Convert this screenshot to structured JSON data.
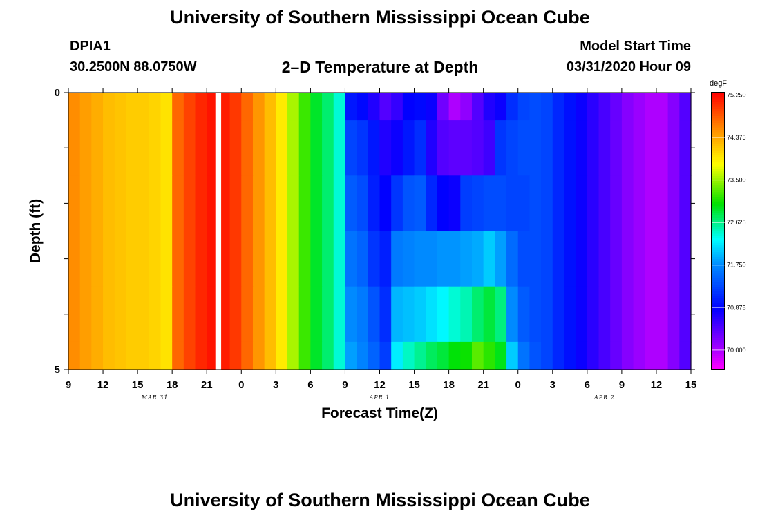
{
  "header": {
    "title": "University of Southern Mississippi Ocean Cube",
    "station": "DPIA1",
    "coords": "30.2500N 88.0750W",
    "subtitle": "2–D Temperature at Depth",
    "model_start_label": "Model Start Time",
    "model_start_value": "03/31/2020 Hour 09"
  },
  "footer": {
    "title": "University of Southern Mississippi Ocean Cube"
  },
  "chart_data": {
    "type": "heatmap",
    "title": "2–D Temperature at Depth",
    "xlabel": "Forecast Time(Z)",
    "ylabel": "Depth (ft)",
    "x_unit": "hours since model start (03/31/2020 09Z)",
    "x_range": [
      0,
      54
    ],
    "x_ticks": [
      {
        "h": 0,
        "label": "9"
      },
      {
        "h": 3,
        "label": "12"
      },
      {
        "h": 6,
        "label": "15"
      },
      {
        "h": 9,
        "label": "18"
      },
      {
        "h": 12,
        "label": "21"
      },
      {
        "h": 15,
        "label": "0"
      },
      {
        "h": 18,
        "label": "3"
      },
      {
        "h": 21,
        "label": "6"
      },
      {
        "h": 24,
        "label": "9"
      },
      {
        "h": 27,
        "label": "12"
      },
      {
        "h": 30,
        "label": "15"
      },
      {
        "h": 33,
        "label": "18"
      },
      {
        "h": 36,
        "label": "21"
      },
      {
        "h": 39,
        "label": "0"
      },
      {
        "h": 42,
        "label": "3"
      },
      {
        "h": 45,
        "label": "6"
      },
      {
        "h": 48,
        "label": "9"
      },
      {
        "h": 51,
        "label": "12"
      },
      {
        "h": 54,
        "label": "15"
      }
    ],
    "date_labels": [
      {
        "h": 7.5,
        "label": "MAR 31"
      },
      {
        "h": 27,
        "label": "APR 1"
      },
      {
        "h": 46.5,
        "label": "APR 2"
      }
    ],
    "y_range": [
      0,
      5
    ],
    "y_ticks": [
      {
        "v": 0,
        "label": "0"
      },
      {
        "v": 5,
        "label": "5"
      }
    ],
    "y_minor_ticks": [
      1,
      2,
      3,
      4
    ],
    "depth_bands": [
      {
        "top": 0,
        "bottom": 0.5
      },
      {
        "top": 0.5,
        "bottom": 1.5
      },
      {
        "top": 1.5,
        "bottom": 2.5
      },
      {
        "top": 2.5,
        "bottom": 3.5
      },
      {
        "top": 3.5,
        "bottom": 4.5
      },
      {
        "top": 4.5,
        "bottom": 5
      }
    ],
    "gap_hours": [
      12.75,
      13.25
    ],
    "colorbar": {
      "unit": "degF",
      "min": 69.6,
      "max": 75.3,
      "ticks": [
        {
          "v": 75.25,
          "label": "75.250"
        },
        {
          "v": 74.375,
          "label": "74.375"
        },
        {
          "v": 73.5,
          "label": "73.500"
        },
        {
          "v": 72.625,
          "label": "72.625"
        },
        {
          "v": 71.75,
          "label": "71.750"
        },
        {
          "v": 70.875,
          "label": "70.875"
        },
        {
          "v": 70.0,
          "label": "70.000"
        }
      ]
    },
    "series": [
      {
        "band": 0,
        "hours": [
          0,
          1,
          2,
          3,
          4,
          5,
          6,
          7,
          8,
          9,
          10,
          11,
          12,
          13,
          14,
          15,
          16,
          17,
          18,
          19,
          20,
          21,
          22,
          23,
          24,
          25,
          26,
          27,
          28,
          29,
          30,
          31,
          32,
          33,
          34,
          35,
          36,
          37,
          38,
          39,
          40,
          41,
          42,
          43,
          44,
          45,
          46,
          47,
          48,
          49,
          50,
          51,
          52,
          53
        ],
        "values": [
          74.55,
          74.45,
          74.35,
          74.25,
          74.2,
          74.15,
          74.15,
          74.1,
          74.0,
          74.75,
          74.95,
          75.1,
          75.2,
          75.15,
          75.0,
          74.75,
          74.5,
          74.25,
          73.95,
          73.55,
          73.2,
          72.9,
          72.7,
          72.4,
          71.0,
          70.9,
          70.7,
          70.45,
          70.6,
          70.85,
          70.9,
          70.8,
          70.3,
          70.0,
          70.15,
          70.45,
          70.7,
          70.8,
          71.15,
          71.3,
          71.35,
          71.3,
          71.1,
          70.95,
          70.8,
          70.65,
          70.5,
          70.35,
          70.2,
          70.1,
          70.0,
          70.0,
          70.2,
          70.45
        ]
      },
      {
        "band": 1,
        "hours": [
          0,
          1,
          2,
          3,
          4,
          5,
          6,
          7,
          8,
          9,
          10,
          11,
          12,
          13,
          14,
          15,
          16,
          17,
          18,
          19,
          20,
          21,
          22,
          23,
          24,
          25,
          26,
          27,
          28,
          29,
          30,
          31,
          32,
          33,
          34,
          35,
          36,
          37,
          38,
          39,
          40,
          41,
          42,
          43,
          44,
          45,
          46,
          47,
          48,
          49,
          50,
          51,
          52,
          53
        ],
        "values": [
          74.55,
          74.45,
          74.35,
          74.25,
          74.2,
          74.15,
          74.15,
          74.1,
          74.0,
          74.75,
          74.95,
          75.1,
          75.2,
          75.15,
          75.0,
          74.75,
          74.5,
          74.25,
          73.95,
          73.55,
          73.2,
          72.9,
          72.7,
          72.4,
          71.3,
          71.2,
          71.0,
          70.7,
          70.8,
          71.0,
          71.15,
          70.7,
          70.45,
          70.4,
          70.4,
          70.45,
          70.55,
          71.2,
          71.3,
          71.35,
          71.35,
          71.3,
          71.1,
          70.95,
          70.8,
          70.65,
          70.5,
          70.35,
          70.2,
          70.1,
          70.0,
          70.0,
          70.2,
          70.45
        ]
      },
      {
        "band": 2,
        "hours": [
          0,
          1,
          2,
          3,
          4,
          5,
          6,
          7,
          8,
          9,
          10,
          11,
          12,
          13,
          14,
          15,
          16,
          17,
          18,
          19,
          20,
          21,
          22,
          23,
          24,
          25,
          26,
          27,
          28,
          29,
          30,
          31,
          32,
          33,
          34,
          35,
          36,
          37,
          38,
          39,
          40,
          41,
          42,
          43,
          44,
          45,
          46,
          47,
          48,
          49,
          50,
          51,
          52,
          53
        ],
        "values": [
          74.55,
          74.45,
          74.35,
          74.25,
          74.2,
          74.15,
          74.15,
          74.1,
          74.0,
          74.75,
          74.95,
          75.1,
          75.2,
          75.15,
          75.0,
          74.75,
          74.5,
          74.25,
          73.95,
          73.55,
          73.2,
          72.9,
          72.7,
          72.4,
          71.45,
          71.35,
          71.05,
          70.85,
          71.2,
          71.4,
          71.45,
          71.1,
          70.85,
          70.8,
          71.25,
          71.3,
          71.35,
          71.35,
          71.3,
          71.3,
          71.35,
          71.3,
          71.1,
          70.95,
          70.8,
          70.65,
          70.5,
          70.35,
          70.2,
          70.1,
          70.0,
          70.0,
          70.2,
          70.45
        ]
      },
      {
        "band": 3,
        "hours": [
          0,
          1,
          2,
          3,
          4,
          5,
          6,
          7,
          8,
          9,
          10,
          11,
          12,
          13,
          14,
          15,
          16,
          17,
          18,
          19,
          20,
          21,
          22,
          23,
          24,
          25,
          26,
          27,
          28,
          29,
          30,
          31,
          32,
          33,
          34,
          35,
          36,
          37,
          38,
          39,
          40,
          41,
          42,
          43,
          44,
          45,
          46,
          47,
          48,
          49,
          50,
          51,
          52,
          53
        ],
        "values": [
          74.55,
          74.45,
          74.35,
          74.25,
          74.2,
          74.15,
          74.15,
          74.1,
          74.0,
          74.75,
          74.95,
          75.1,
          75.2,
          75.15,
          75.0,
          74.75,
          74.5,
          74.25,
          73.95,
          73.55,
          73.2,
          72.9,
          72.7,
          72.4,
          71.6,
          71.5,
          71.2,
          71.05,
          71.65,
          71.7,
          71.75,
          71.75,
          71.8,
          71.8,
          71.85,
          71.9,
          72.05,
          71.85,
          71.55,
          71.35,
          71.35,
          71.3,
          71.1,
          70.95,
          70.8,
          70.65,
          70.5,
          70.35,
          70.2,
          70.1,
          70.0,
          70.0,
          70.2,
          70.45
        ]
      },
      {
        "band": 4,
        "hours": [
          0,
          1,
          2,
          3,
          4,
          5,
          6,
          7,
          8,
          9,
          10,
          11,
          12,
          13,
          14,
          15,
          16,
          17,
          18,
          19,
          20,
          21,
          22,
          23,
          24,
          25,
          26,
          27,
          28,
          29,
          30,
          31,
          32,
          33,
          34,
          35,
          36,
          37,
          38,
          39,
          40,
          41,
          42,
          43,
          44,
          45,
          46,
          47,
          48,
          49,
          50,
          51,
          52,
          53
        ],
        "values": [
          74.55,
          74.45,
          74.35,
          74.25,
          74.2,
          74.15,
          74.15,
          74.1,
          74.0,
          74.75,
          74.95,
          75.1,
          75.2,
          75.15,
          75.0,
          74.75,
          74.5,
          74.25,
          73.95,
          73.55,
          73.2,
          72.9,
          72.7,
          72.4,
          71.75,
          71.65,
          71.4,
          71.15,
          71.95,
          72.0,
          72.05,
          72.15,
          72.25,
          72.4,
          72.5,
          72.7,
          72.85,
          72.65,
          71.75,
          71.45,
          71.35,
          71.3,
          71.1,
          70.95,
          70.8,
          70.65,
          70.5,
          70.35,
          70.2,
          70.1,
          70.0,
          70.0,
          70.2,
          70.45
        ]
      },
      {
        "band": 5,
        "hours": [
          0,
          1,
          2,
          3,
          4,
          5,
          6,
          7,
          8,
          9,
          10,
          11,
          12,
          13,
          14,
          15,
          16,
          17,
          18,
          19,
          20,
          21,
          22,
          23,
          24,
          25,
          26,
          27,
          28,
          29,
          30,
          31,
          32,
          33,
          34,
          35,
          36,
          37,
          38,
          39,
          40,
          41,
          42,
          43,
          44,
          45,
          46,
          47,
          48,
          49,
          50,
          51,
          52,
          53
        ],
        "values": [
          74.55,
          74.45,
          74.35,
          74.25,
          74.2,
          74.15,
          74.15,
          74.1,
          74.0,
          74.75,
          74.95,
          75.1,
          75.2,
          75.15,
          75.0,
          74.75,
          74.5,
          74.25,
          73.95,
          73.55,
          73.2,
          72.9,
          72.7,
          72.4,
          71.85,
          71.7,
          71.5,
          71.25,
          72.2,
          72.45,
          72.6,
          72.75,
          72.85,
          73.0,
          73.05,
          73.3,
          73.15,
          72.95,
          72.05,
          71.6,
          71.4,
          71.3,
          71.1,
          70.95,
          70.8,
          70.65,
          70.5,
          70.35,
          70.2,
          70.1,
          70.0,
          70.0,
          70.2,
          70.45
        ]
      }
    ]
  }
}
